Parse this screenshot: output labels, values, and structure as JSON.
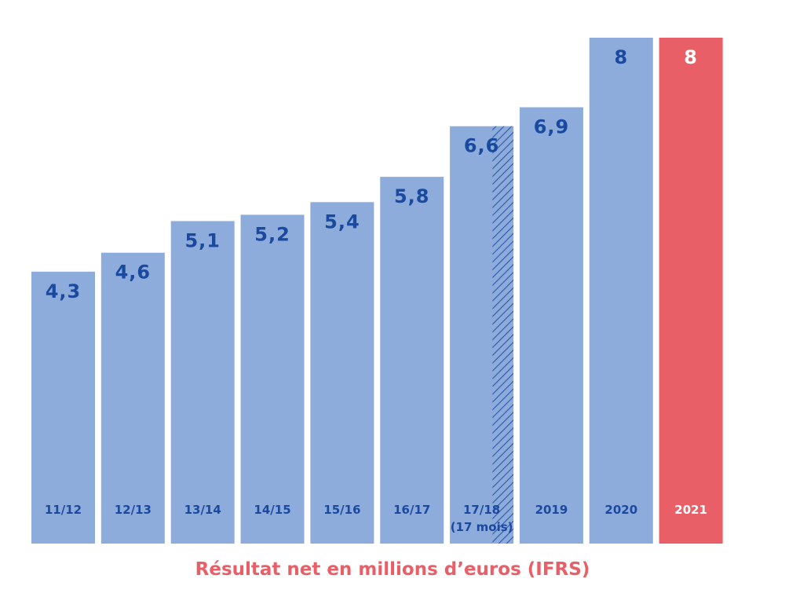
{
  "chart_data": {
    "type": "bar",
    "categories": [
      "11/12",
      "12/13",
      "13/14",
      "14/15",
      "15/16",
      "16/17",
      "17/18",
      "2019",
      "2020",
      "2021"
    ],
    "category_notes": [
      "",
      "",
      "",
      "",
      "",
      "",
      "(17 mois)",
      "",
      "",
      ""
    ],
    "values": [
      4.3,
      4.6,
      5.1,
      5.2,
      5.4,
      5.8,
      6.6,
      6.9,
      8,
      8
    ],
    "value_labels": [
      "4,3",
      "4,6",
      "5,1",
      "5,2",
      "5,4",
      "5,8",
      "6,6",
      "6,9",
      "8",
      "8"
    ],
    "highlight_index": 9,
    "hatched_portion_index": 6,
    "hatched_fraction": 0.33,
    "title": "Résultat net en millions d’euros (IFRS)",
    "xlabel": "",
    "ylabel": "",
    "ylim": [
      0,
      8
    ],
    "grid": false,
    "colors": {
      "bar": "#8eacdb",
      "highlight_bar": "#e85f67",
      "label": "#1a4aa0",
      "highlight_label": "#ffffff",
      "hatch": "#2b58a8",
      "caption": "#e85f67"
    }
  }
}
